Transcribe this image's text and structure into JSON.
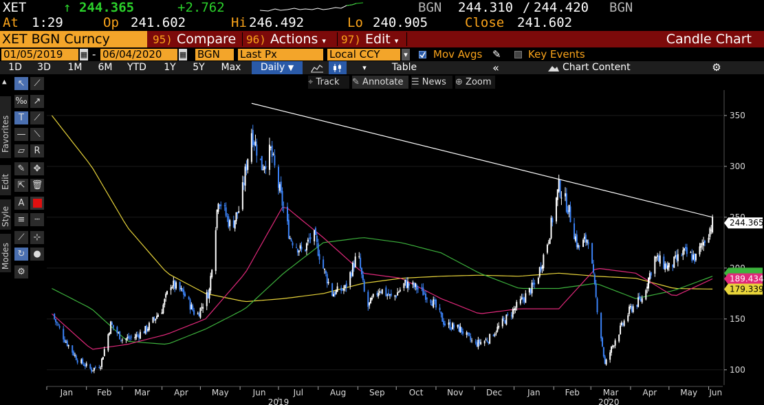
{
  "quote": {
    "ticker": "XET",
    "arrow": "↑",
    "last": "244.365",
    "change": "+2.762",
    "currency": "BGN",
    "bid": "244.310",
    "slash": "/",
    "ask": "244.420",
    "currency2": "BGN",
    "at_label": "At",
    "at_time": "1:29",
    "open_label": "Op",
    "open": "241.602",
    "high_label": "Hi",
    "high": "246.492",
    "low_label": "Lo",
    "low": "240.905",
    "close_label": "Close",
    "close": "241.602"
  },
  "titlebar": {
    "security": "XET BGN Curncy",
    "compare_num": "95)",
    "compare": "Compare",
    "actions_num": "96)",
    "actions": "Actions",
    "edit_num": "97)",
    "edit": "Edit",
    "chart_title": "Candle Chart"
  },
  "params": {
    "start_date": "01/05/2019",
    "dash": "-",
    "end_date": "06/04/2020",
    "currency": "BGN",
    "field": "Last Px",
    "ccy_mode": "Local CCY",
    "mov_avgs": "Mov Avgs",
    "key_events": "Key Events"
  },
  "ranges": {
    "items": [
      "1D",
      "3D",
      "1M",
      "6M",
      "YTD",
      "1Y",
      "5Y",
      "Max"
    ],
    "frequency": "Daily",
    "table": "Table",
    "chart_content": "Chart Content"
  },
  "annotate_bar": {
    "track": "Track",
    "annotate": "Annotate",
    "news": "News",
    "zoom": "Zoom"
  },
  "left_tabs": {
    "favorites": "Favorites",
    "edit": "Edit",
    "style": "Style",
    "modes": "Modes"
  },
  "colors": {
    "bull": "#ffffff",
    "bear": "#3b82f6",
    "ma_yellow": "#e8d43a",
    "ma_pink": "#e0287a",
    "ma_green": "#3db33d",
    "trendline": "#ffffff",
    "last_label_bg": "#ffffff",
    "pink_label_bg": "#e0287a",
    "yellow_label_bg": "#e8d43a"
  },
  "chart_data": {
    "type": "candlestick",
    "ylim": [
      85,
      375
    ],
    "yticks": [
      "100",
      "150",
      "200",
      "250",
      "300",
      "350"
    ],
    "ytick_values": [
      100,
      150,
      200,
      250,
      300,
      350
    ],
    "xticks": [
      "Jan",
      "Feb",
      "Mar",
      "Apr",
      "May",
      "Jun",
      "Jul",
      "Aug",
      "Sep",
      "Oct",
      "Nov",
      "Dec",
      "Jan",
      "Feb",
      "Mar",
      "Apr",
      "May",
      "Jun"
    ],
    "year_labels": [
      "2019",
      "2020"
    ],
    "last_price_label": "244.365",
    "ma_labels": [
      "189.434",
      "179.339"
    ],
    "trendline": {
      "from": [
        "2019-06-10",
        362
      ],
      "to": [
        "2020-06-04",
        250
      ]
    },
    "close_path": [
      [
        "2019-01-05",
        155
      ],
      [
        "2019-01-15",
        130
      ],
      [
        "2019-01-25",
        110
      ],
      [
        "2019-02-05",
        100
      ],
      [
        "2019-02-12",
        105
      ],
      [
        "2019-02-20",
        145
      ],
      [
        "2019-03-01",
        130
      ],
      [
        "2019-03-10",
        132
      ],
      [
        "2019-03-20",
        140
      ],
      [
        "2019-04-01",
        160
      ],
      [
        "2019-04-08",
        185
      ],
      [
        "2019-04-18",
        175
      ],
      [
        "2019-04-28",
        152
      ],
      [
        "2019-05-08",
        178
      ],
      [
        "2019-05-15",
        270
      ],
      [
        "2019-05-25",
        240
      ],
      [
        "2019-06-01",
        260
      ],
      [
        "2019-06-10",
        335
      ],
      [
        "2019-06-18",
        300
      ],
      [
        "2019-06-25",
        315
      ],
      [
        "2019-07-02",
        275
      ],
      [
        "2019-07-10",
        230
      ],
      [
        "2019-07-20",
        215
      ],
      [
        "2019-07-28",
        235
      ],
      [
        "2019-08-05",
        200
      ],
      [
        "2019-08-12",
        175
      ],
      [
        "2019-08-22",
        180
      ],
      [
        "2019-09-01",
        215
      ],
      [
        "2019-09-08",
        160
      ],
      [
        "2019-09-18",
        180
      ],
      [
        "2019-09-28",
        170
      ],
      [
        "2019-10-08",
        185
      ],
      [
        "2019-10-18",
        180
      ],
      [
        "2019-10-28",
        170
      ],
      [
        "2019-11-08",
        145
      ],
      [
        "2019-11-20",
        140
      ],
      [
        "2019-12-01",
        125
      ],
      [
        "2019-12-12",
        130
      ],
      [
        "2019-12-22",
        145
      ],
      [
        "2020-01-05",
        165
      ],
      [
        "2020-01-18",
        185
      ],
      [
        "2020-01-28",
        230
      ],
      [
        "2020-02-05",
        280
      ],
      [
        "2020-02-12",
        260
      ],
      [
        "2020-02-20",
        220
      ],
      [
        "2020-02-28",
        230
      ],
      [
        "2020-03-05",
        170
      ],
      [
        "2020-03-12",
        105
      ],
      [
        "2020-03-20",
        130
      ],
      [
        "2020-04-01",
        160
      ],
      [
        "2020-04-10",
        170
      ],
      [
        "2020-04-20",
        210
      ],
      [
        "2020-05-01",
        200
      ],
      [
        "2020-05-12",
        215
      ],
      [
        "2020-05-22",
        210
      ],
      [
        "2020-06-04",
        244.365
      ]
    ],
    "ma_green": [
      [
        "2019-01-05",
        180
      ],
      [
        "2019-02-05",
        160
      ],
      [
        "2019-03-05",
        128
      ],
      [
        "2019-04-05",
        125
      ],
      [
        "2019-05-05",
        140
      ],
      [
        "2019-06-05",
        160
      ],
      [
        "2019-07-05",
        195
      ],
      [
        "2019-08-05",
        225
      ],
      [
        "2019-09-05",
        230
      ],
      [
        "2019-10-05",
        225
      ],
      [
        "2019-11-05",
        215
      ],
      [
        "2019-12-05",
        195
      ],
      [
        "2020-01-05",
        180
      ],
      [
        "2020-02-05",
        180
      ],
      [
        "2020-03-05",
        185
      ],
      [
        "2020-04-05",
        170
      ],
      [
        "2020-05-05",
        178
      ],
      [
        "2020-06-04",
        192
      ]
    ],
    "ma_pink": [
      [
        "2019-01-05",
        155
      ],
      [
        "2019-02-05",
        120
      ],
      [
        "2019-03-05",
        125
      ],
      [
        "2019-04-05",
        135
      ],
      [
        "2019-05-05",
        150
      ],
      [
        "2019-06-05",
        195
      ],
      [
        "2019-07-05",
        262
      ],
      [
        "2019-08-05",
        230
      ],
      [
        "2019-09-05",
        195
      ],
      [
        "2019-10-05",
        190
      ],
      [
        "2019-11-05",
        170
      ],
      [
        "2019-12-05",
        155
      ],
      [
        "2020-01-05",
        160
      ],
      [
        "2020-02-05",
        160
      ],
      [
        "2020-03-05",
        200
      ],
      [
        "2020-04-05",
        195
      ],
      [
        "2020-05-05",
        172
      ],
      [
        "2020-06-04",
        189.434
      ]
    ],
    "ma_yellow": [
      [
        "2019-01-05",
        350
      ],
      [
        "2019-02-05",
        300
      ],
      [
        "2019-03-05",
        240
      ],
      [
        "2019-04-05",
        195
      ],
      [
        "2019-05-05",
        175
      ],
      [
        "2019-06-05",
        167
      ],
      [
        "2019-07-05",
        170
      ],
      [
        "2019-08-05",
        175
      ],
      [
        "2019-09-05",
        185
      ],
      [
        "2019-10-05",
        190
      ],
      [
        "2019-11-05",
        192
      ],
      [
        "2019-12-05",
        193
      ],
      [
        "2020-01-05",
        192
      ],
      [
        "2020-02-05",
        195
      ],
      [
        "2020-03-05",
        192
      ],
      [
        "2020-04-05",
        190
      ],
      [
        "2020-05-05",
        180
      ],
      [
        "2020-06-04",
        179.339
      ]
    ]
  }
}
